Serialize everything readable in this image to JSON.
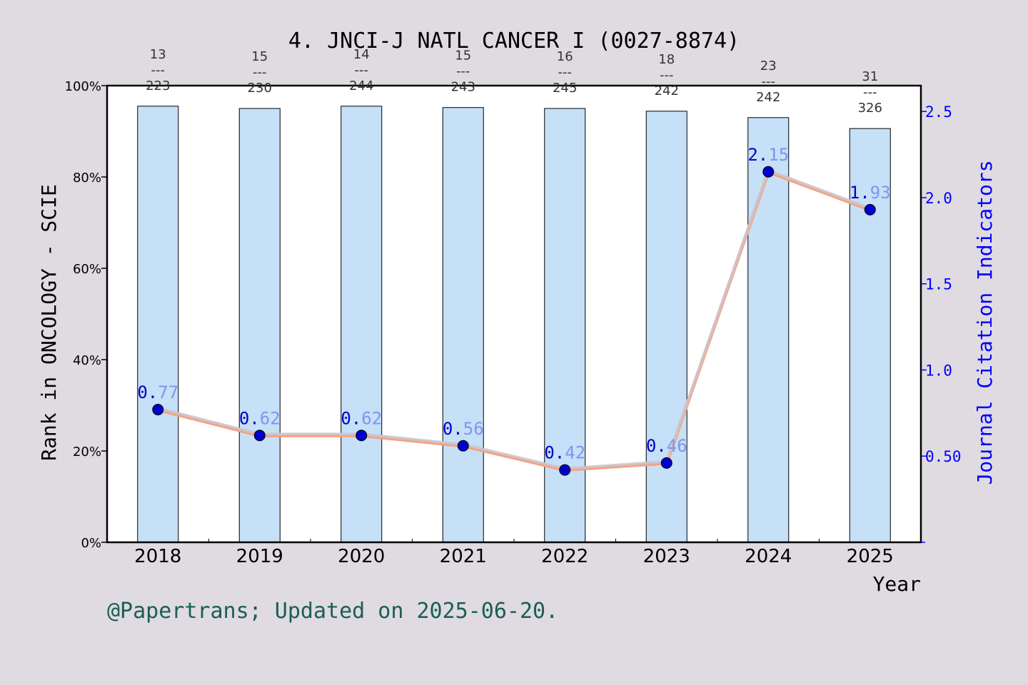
{
  "chart_data": {
    "type": "bar",
    "title": "4. JNCI-J NATL CANCER I (0027-8874)",
    "xlabel": "Year",
    "ylabel_left": "Rank in ONCOLOGY - SCIE",
    "ylabel_right": "Journal Citation Indicators",
    "categories": [
      "2018",
      "2019",
      "2020",
      "2021",
      "2022",
      "2023",
      "2024",
      "2025"
    ],
    "left_axis": {
      "ylim": [
        0,
        100
      ],
      "ticks": [
        0,
        20,
        40,
        60,
        80,
        100
      ],
      "tick_labels": [
        "0%",
        "20%",
        "40%",
        "60%",
        "80%",
        "100%"
      ]
    },
    "right_axis": {
      "ylim": [
        0,
        2.65
      ],
      "ticks": [
        0.5,
        1.0,
        1.5,
        2.0,
        2.5
      ],
      "tick_labels": [
        "0.50",
        "1.0",
        "1.5",
        "2.0",
        "2.5"
      ]
    },
    "bars": {
      "values": [
        95.5,
        95.0,
        95.5,
        95.2,
        95.0,
        94.4,
        93.0,
        90.6
      ],
      "rank_labels": [
        {
          "rank": "13",
          "sep": "---",
          "total": "223"
        },
        {
          "rank": "15",
          "sep": "---",
          "total": "230"
        },
        {
          "rank": "14",
          "sep": "---",
          "total": "244"
        },
        {
          "rank": "15",
          "sep": "---",
          "total": "243"
        },
        {
          "rank": "16",
          "sep": "---",
          "total": "245"
        },
        {
          "rank": "18",
          "sep": "---",
          "total": "242"
        },
        {
          "rank": "23",
          "sep": "---",
          "total": "242"
        },
        {
          "rank": "31",
          "sep": "---",
          "total": "326"
        }
      ]
    },
    "line": {
      "values": [
        0.77,
        0.62,
        0.62,
        0.56,
        0.42,
        0.46,
        2.15,
        1.93
      ],
      "labels": [
        "0.77",
        "0.62",
        "0.62",
        "0.56",
        "0.42",
        "0.46",
        "2.15",
        "1.93"
      ]
    },
    "grid": false,
    "legend": "none"
  },
  "footer": "@Papertrans; Updated on 2025-06-20.",
  "colors": {
    "background": "#dfdbe1",
    "plot_bg": "#ffffff",
    "bar_fill": "#c5e0f7",
    "line": "#f7a07a",
    "line_highlight": "#c8c8d4",
    "marker": "#0000cc",
    "right_axis": "#0000ff",
    "footer": "#1b5e55"
  }
}
